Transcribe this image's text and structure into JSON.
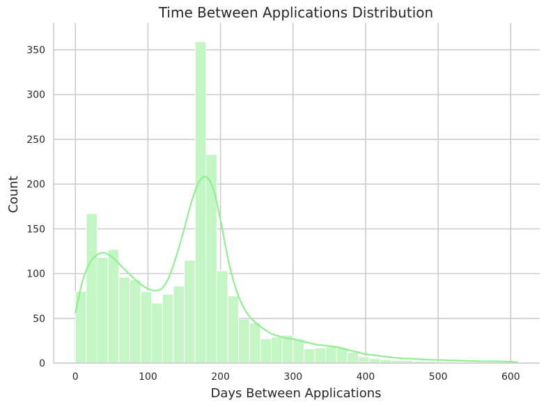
{
  "chart_data": {
    "type": "bar",
    "title": "Time Between Applications Distribution",
    "xlabel": "Days Between Applications",
    "ylabel": "Count",
    "xlim": [
      -30,
      640
    ],
    "ylim": [
      0,
      380
    ],
    "x_ticks": [
      0,
      100,
      200,
      300,
      400,
      500,
      600
    ],
    "y_ticks": [
      0,
      50,
      100,
      150,
      200,
      250,
      300,
      350
    ],
    "grid": true,
    "bin_width": 15,
    "bin_start": 0,
    "histogram_counts": [
      80,
      167,
      118,
      127,
      96,
      93,
      80,
      67,
      77,
      86,
      115,
      359,
      233,
      103,
      75,
      49,
      45,
      27,
      29,
      31,
      27,
      16,
      17,
      18,
      17,
      12,
      7,
      5,
      4,
      3,
      3,
      2,
      2,
      1,
      1,
      1,
      1,
      0.5,
      0.5,
      0.5,
      0.5
    ],
    "kde": {
      "x": [
        0,
        10,
        20,
        30,
        40,
        50,
        60,
        70,
        80,
        90,
        100,
        110,
        120,
        130,
        140,
        150,
        160,
        170,
        180,
        190,
        200,
        210,
        220,
        230,
        240,
        250,
        260,
        270,
        280,
        290,
        300,
        310,
        320,
        330,
        340,
        350,
        360,
        370,
        380,
        390,
        400,
        420,
        440,
        460,
        480,
        500,
        520,
        540,
        560,
        580,
        600,
        610
      ],
      "y": [
        56,
        92,
        112,
        121,
        123,
        119,
        111,
        103,
        95,
        88,
        83,
        81,
        84,
        98,
        122,
        150,
        180,
        202,
        208,
        195,
        160,
        118,
        86,
        65,
        52,
        44,
        38,
        33,
        30,
        28,
        27,
        25,
        23,
        21,
        20,
        19,
        18,
        16,
        14,
        12,
        10,
        8,
        6,
        5,
        4,
        3.5,
        3,
        2.5,
        2,
        2,
        1.5,
        1
      ]
    },
    "colors": {
      "bar_fill": "#c4f5c4",
      "bar_edge": "#ffffff",
      "kde_line": "#90ee90",
      "grid": "#cccccc",
      "axis": "#cccccc",
      "text": "#262626"
    }
  }
}
